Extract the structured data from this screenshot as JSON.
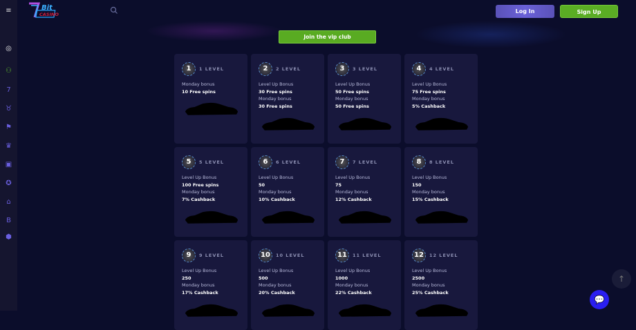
{
  "header": {
    "login": "Log In",
    "signup": "Sign Up",
    "logo_text": "7Bit Casino"
  },
  "sidebar": {
    "icons": [
      "user-circle-icon",
      "user-plus-icon",
      "seven-icon",
      "cup-icon",
      "flag-icon",
      "crown-icon",
      "robot-icon",
      "lifebuoy-icon",
      "house-icon",
      "bitcoin-icon",
      "shield-icon"
    ]
  },
  "vip_button": "Join the vip club",
  "colors": {
    "accent_green": "#59ab22",
    "accent_purple": "#6a61d8",
    "bg": "#0b0d2b",
    "card": "#18183d"
  },
  "levels": [
    {
      "num": "1",
      "title": "1 LEVEL",
      "lines": [
        [
          "l",
          "Monday bonus"
        ],
        [
          "v",
          "10 Free spins"
        ]
      ]
    },
    {
      "num": "2",
      "title": "2 LEVEL",
      "lines": [
        [
          "l",
          "Level Up Bonus"
        ],
        [
          "v",
          "30 Free spins"
        ],
        [
          "l",
          "Monday bonus"
        ],
        [
          "v",
          "30 Free spins"
        ]
      ]
    },
    {
      "num": "3",
      "title": "3 LEVEL",
      "lines": [
        [
          "l",
          "Level Up Bonus"
        ],
        [
          "v",
          "50 Free spins"
        ],
        [
          "l",
          "Monday bonus"
        ],
        [
          "v",
          "50 Free spins"
        ]
      ]
    },
    {
      "num": "4",
      "title": "4 LEVEL",
      "lines": [
        [
          "l",
          "Level Up Bonus"
        ],
        [
          "v",
          "75 Free spins"
        ],
        [
          "l",
          "Monday bonus"
        ],
        [
          "v",
          "5% Cashback"
        ]
      ]
    },
    {
      "num": "5",
      "title": "5 LEVEL",
      "lines": [
        [
          "l",
          "Level Up Bonus"
        ],
        [
          "v",
          "100 Free spins"
        ],
        [
          "l",
          "Monday bonus"
        ],
        [
          "v",
          "7% Cashback"
        ]
      ]
    },
    {
      "num": "6",
      "title": "6 LEVEL",
      "lines": [
        [
          "l",
          "Level Up Bonus"
        ],
        [
          "v",
          "50"
        ],
        [
          "l",
          "Monday bonus"
        ],
        [
          "v",
          "10% Cashback"
        ]
      ]
    },
    {
      "num": "7",
      "title": "7 LEVEL",
      "lines": [
        [
          "l",
          "Level Up Bonus"
        ],
        [
          "v",
          "75"
        ],
        [
          "l",
          "Monday bonus"
        ],
        [
          "v",
          "12% Cashback"
        ]
      ]
    },
    {
      "num": "8",
      "title": "8 LEVEL",
      "lines": [
        [
          "l",
          "Level Up Bonus"
        ],
        [
          "v",
          "150"
        ],
        [
          "l",
          "Monday bonus"
        ],
        [
          "v",
          "15% Cashback"
        ]
      ]
    },
    {
      "num": "9",
      "title": "9 LEVEL",
      "lines": [
        [
          "l",
          "Level Up Bonus"
        ],
        [
          "v",
          "250"
        ],
        [
          "l",
          "Monday bonus"
        ],
        [
          "v",
          "17% Cashback"
        ]
      ]
    },
    {
      "num": "10",
      "title": "10 LEVEL",
      "lines": [
        [
          "l",
          "Level Up Bonus"
        ],
        [
          "v",
          "500"
        ],
        [
          "l",
          "Monday bonus"
        ],
        [
          "v",
          "20% Cashback"
        ]
      ]
    },
    {
      "num": "11",
      "title": "11 LEVEL",
      "lines": [
        [
          "l",
          "Level Up Bonus"
        ],
        [
          "v",
          "1000"
        ],
        [
          "l",
          "Monday bonus"
        ],
        [
          "v",
          "22% Cashback"
        ]
      ]
    },
    {
      "num": "12",
      "title": "12 LEVEL",
      "lines": [
        [
          "l",
          "Level Up Bonus"
        ],
        [
          "v",
          "2500"
        ],
        [
          "l",
          "Monday bonus"
        ],
        [
          "v",
          "25% Cashback"
        ]
      ]
    }
  ]
}
